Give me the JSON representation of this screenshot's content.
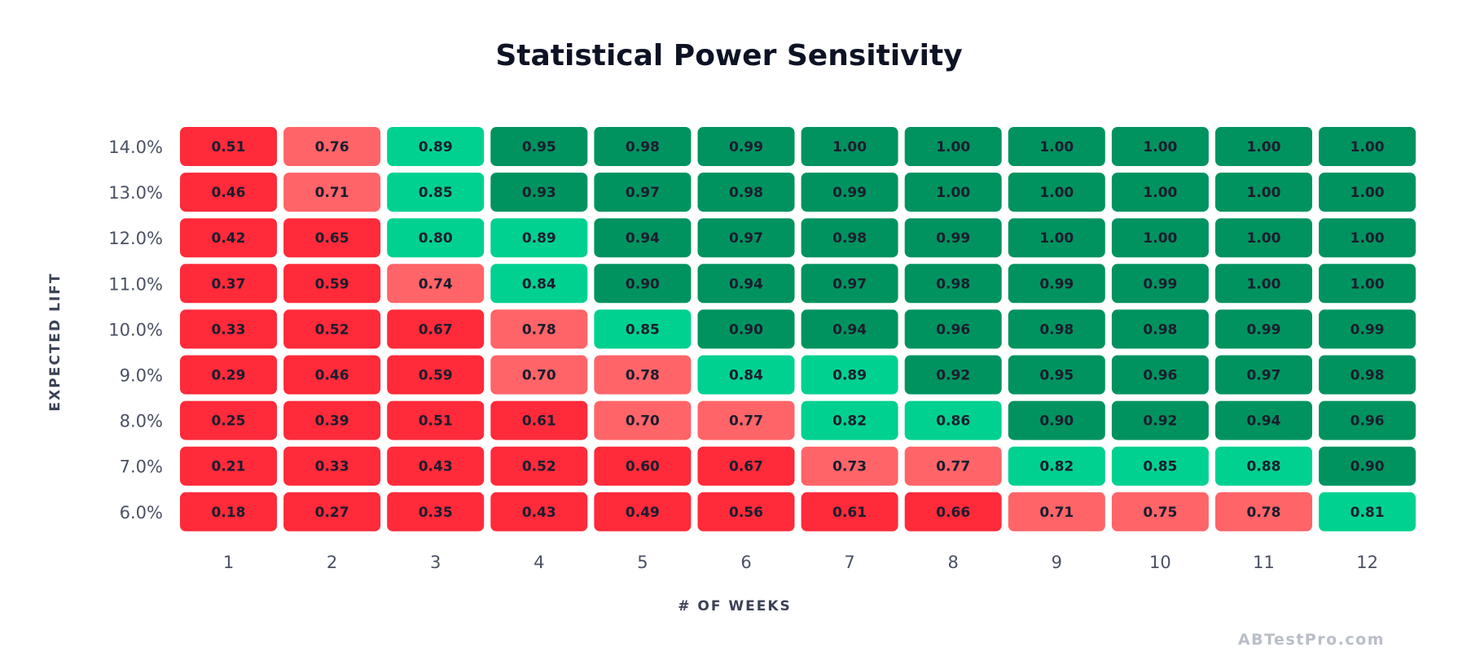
{
  "chart_data": {
    "type": "heatmap",
    "title": "Statistical Power Sensitivity",
    "xlabel": "# OF WEEKS",
    "ylabel": "EXPECTED LIFT",
    "x": [
      "1",
      "2",
      "3",
      "4",
      "5",
      "6",
      "7",
      "8",
      "9",
      "10",
      "11",
      "12"
    ],
    "y": [
      "14.0%",
      "13.0%",
      "12.0%",
      "11.0%",
      "10.0%",
      "9.0%",
      "8.0%",
      "7.0%",
      "6.0%"
    ],
    "labels": [
      [
        "0.51",
        "0.76",
        "0.89",
        "0.95",
        "0.98",
        "0.99",
        "1.00",
        "1.00",
        "1.00",
        "1.00",
        "1.00",
        "1.00"
      ],
      [
        "0.46",
        "0.71",
        "0.85",
        "0.93",
        "0.97",
        "0.98",
        "0.99",
        "1.00",
        "1.00",
        "1.00",
        "1.00",
        "1.00"
      ],
      [
        "0.42",
        "0.65",
        "0.80",
        "0.89",
        "0.94",
        "0.97",
        "0.98",
        "0.99",
        "1.00",
        "1.00",
        "1.00",
        "1.00"
      ],
      [
        "0.37",
        "0.59",
        "0.74",
        "0.84",
        "0.90",
        "0.94",
        "0.97",
        "0.98",
        "0.99",
        "0.99",
        "1.00",
        "1.00"
      ],
      [
        "0.33",
        "0.52",
        "0.67",
        "0.78",
        "0.85",
        "0.90",
        "0.94",
        "0.96",
        "0.98",
        "0.98",
        "0.99",
        "0.99"
      ],
      [
        "0.29",
        "0.46",
        "0.59",
        "0.70",
        "0.78",
        "0.84",
        "0.89",
        "0.92",
        "0.95",
        "0.96",
        "0.97",
        "0.98"
      ],
      [
        "0.25",
        "0.39",
        "0.51",
        "0.61",
        "0.70",
        "0.77",
        "0.82",
        "0.86",
        "0.90",
        "0.92",
        "0.94",
        "0.96"
      ],
      [
        "0.21",
        "0.33",
        "0.43",
        "0.52",
        "0.60",
        "0.67",
        "0.73",
        "0.77",
        "0.82",
        "0.85",
        "0.88",
        "0.90"
      ],
      [
        "0.18",
        "0.27",
        "0.35",
        "0.43",
        "0.49",
        "0.56",
        "0.61",
        "0.66",
        "0.71",
        "0.75",
        "0.78",
        "0.81"
      ]
    ],
    "color_scale": [
      {
        "below": 0.7,
        "color": "#ff2a3a"
      },
      {
        "below": 0.8,
        "color": "#ff6468"
      },
      {
        "below": 0.9,
        "color": "#00d190"
      },
      {
        "below": 1.01,
        "color": "#00935f"
      }
    ],
    "text_color": "#1a1d2e"
  },
  "watermark": "ABTestPro.com"
}
